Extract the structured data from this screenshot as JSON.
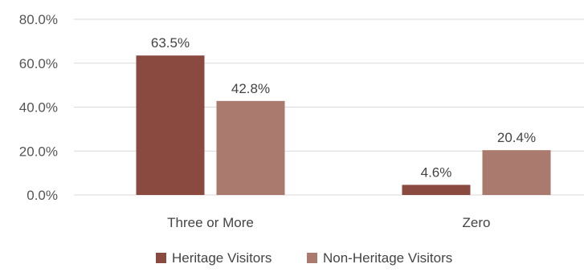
{
  "chart_data": {
    "type": "bar",
    "categories": [
      "Three or More",
      "Zero"
    ],
    "series": [
      {
        "name": "Heritage Visitors",
        "values": [
          63.5,
          4.6
        ],
        "color": "#8b4a40",
        "labels": [
          "63.5%",
          "4.6%"
        ]
      },
      {
        "name": "Non-Heritage Visitors",
        "values": [
          42.8,
          20.4
        ],
        "color": "#a97a6d",
        "labels": [
          "42.8%",
          "20.4%"
        ]
      }
    ],
    "yticks": [
      0,
      20,
      40,
      60,
      80
    ],
    "ytick_labels": [
      "0.0%",
      "20.0%",
      "40.0%",
      "60.0%",
      "80.0%"
    ],
    "ylim": [
      0,
      80
    ],
    "grid": true,
    "legend_position": "bottom"
  }
}
